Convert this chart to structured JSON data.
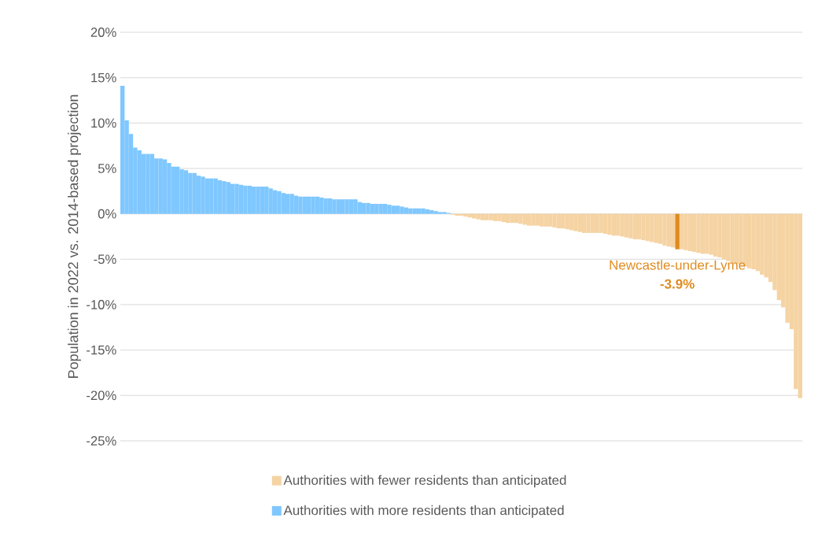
{
  "chart_data": {
    "type": "bar",
    "ylabel": "Population in 2022 vs. 2014-based projection",
    "categories": [
      null,
      null,
      null,
      null,
      null,
      null,
      null,
      null,
      null,
      null,
      null,
      null,
      null,
      null,
      null,
      null,
      null,
      null,
      null,
      null,
      null,
      null,
      null,
      null,
      null,
      null,
      null,
      null,
      null,
      null,
      null,
      null,
      null,
      null,
      null,
      null,
      null,
      null,
      null,
      null,
      null,
      null,
      null,
      null,
      null,
      null,
      null,
      null,
      null,
      null,
      null,
      null,
      null,
      null,
      null,
      null,
      null,
      null,
      null,
      null,
      null,
      null,
      null,
      null,
      null,
      null,
      null,
      null,
      null,
      null,
      null,
      null,
      null,
      null,
      null,
      null,
      null,
      null,
      null,
      null,
      null,
      null,
      null,
      null,
      null,
      null,
      null,
      null,
      null,
      null,
      null,
      null,
      null,
      null,
      null,
      null,
      null,
      null,
      null,
      null,
      null,
      null,
      null,
      null,
      null,
      null,
      null,
      null,
      null,
      null,
      null,
      null,
      null,
      null,
      null,
      null,
      null,
      null,
      null,
      null,
      null,
      null,
      null,
      null,
      null,
      null,
      null,
      null,
      null,
      null,
      null,
      null,
      null,
      null,
      null,
      null,
      null,
      null,
      null,
      null,
      null,
      null,
      null,
      null,
      null,
      null,
      null,
      null,
      null,
      null,
      null,
      null,
      null,
      null,
      null,
      null,
      null,
      null,
      null,
      null,
      null
    ],
    "series": [
      {
        "name": "Authorities with fewer residents than anticipated",
        "color": "#f5d3a3",
        "values": [
          null,
          null,
          null,
          null,
          null,
          null,
          null,
          null,
          null,
          null,
          null,
          null,
          null,
          null,
          null,
          null,
          null,
          null,
          null,
          null,
          null,
          null,
          null,
          null,
          null,
          null,
          null,
          null,
          null,
          null,
          null,
          null,
          null,
          null,
          null,
          null,
          null,
          null,
          null,
          null,
          null,
          null,
          null,
          null,
          null,
          null,
          null,
          null,
          null,
          null,
          null,
          null,
          null,
          null,
          null,
          null,
          null,
          null,
          null,
          null,
          null,
          null,
          null,
          null,
          null,
          null,
          null,
          null,
          null,
          null,
          null,
          null,
          null,
          null,
          null,
          null,
          null,
          null,
          -0.1,
          -0.2,
          -0.2,
          -0.3,
          -0.4,
          -0.5,
          -0.6,
          -0.7,
          -0.7,
          -0.7,
          -0.8,
          -0.8,
          -0.9,
          -1.0,
          -1.0,
          -1.0,
          -1.1,
          -1.2,
          -1.3,
          -1.3,
          -1.3,
          -1.4,
          -1.4,
          -1.4,
          -1.5,
          -1.6,
          -1.6,
          -1.7,
          -1.8,
          -1.9,
          -2.0,
          -2.1,
          -2.1,
          -2.1,
          -2.1,
          -2.1,
          -2.2,
          -2.3,
          -2.4,
          -2.4,
          -2.5,
          -2.6,
          -2.7,
          -2.8,
          -2.8,
          -2.9,
          -3.0,
          -3.1,
          -3.2,
          -3.3,
          -3.5,
          -3.6,
          -3.7,
          null,
          -3.9,
          -4.0,
          -4.1,
          -4.2,
          -4.3,
          -4.4,
          -4.4,
          -4.5,
          -4.7,
          -4.8,
          -5.0,
          -5.2,
          -5.4,
          -5.5,
          -5.6,
          -5.8,
          -6.0,
          -6.1,
          -6.3,
          -6.7,
          -7.0,
          -7.5,
          -8.4,
          -9.5,
          -10.3,
          -12.0,
          -12.7,
          -19.3,
          -20.3
        ]
      },
      {
        "name": "Authorities with more residents than anticipated",
        "color": "#7fc7ff",
        "values": [
          14.1,
          10.3,
          8.8,
          7.3,
          7.0,
          6.6,
          6.6,
          6.6,
          6.1,
          6.1,
          6.0,
          5.6,
          5.2,
          5.2,
          4.9,
          4.8,
          4.5,
          4.5,
          4.2,
          4.1,
          3.9,
          3.9,
          3.9,
          3.7,
          3.6,
          3.5,
          3.3,
          3.3,
          3.2,
          3.1,
          3.1,
          3.0,
          3.0,
          3.0,
          3.0,
          2.8,
          2.6,
          2.5,
          2.3,
          2.2,
          2.2,
          2.0,
          1.9,
          1.9,
          1.9,
          1.9,
          1.9,
          1.8,
          1.7,
          1.7,
          1.6,
          1.6,
          1.6,
          1.6,
          1.6,
          1.6,
          1.3,
          1.2,
          1.2,
          1.1,
          1.1,
          1.1,
          1.1,
          1.0,
          0.9,
          0.9,
          0.8,
          0.7,
          0.6,
          0.6,
          0.6,
          0.6,
          0.5,
          0.4,
          0.3,
          0.2,
          0.2,
          0.1,
          null,
          null,
          null,
          null,
          null,
          null,
          null,
          null,
          null,
          null,
          null,
          null,
          null,
          null,
          null,
          null,
          null,
          null,
          null,
          null,
          null,
          null,
          null,
          null,
          null,
          null,
          null,
          null,
          null,
          null,
          null,
          null,
          null,
          null,
          null,
          null,
          null,
          null,
          null,
          null,
          null,
          null,
          null,
          null,
          null,
          null,
          null,
          null,
          null,
          null,
          null,
          null,
          null,
          null,
          null,
          null,
          null,
          null,
          null,
          null,
          null,
          null,
          null,
          null,
          null,
          null,
          null,
          null,
          null,
          null,
          null,
          null,
          null,
          null,
          null,
          null,
          null,
          null,
          null,
          null,
          null,
          null,
          null
        ]
      },
      {
        "name": "Newcastle-under-Lyme",
        "color": "#e08a1e",
        "values": [
          null,
          null,
          null,
          null,
          null,
          null,
          null,
          null,
          null,
          null,
          null,
          null,
          null,
          null,
          null,
          null,
          null,
          null,
          null,
          null,
          null,
          null,
          null,
          null,
          null,
          null,
          null,
          null,
          null,
          null,
          null,
          null,
          null,
          null,
          null,
          null,
          null,
          null,
          null,
          null,
          null,
          null,
          null,
          null,
          null,
          null,
          null,
          null,
          null,
          null,
          null,
          null,
          null,
          null,
          null,
          null,
          null,
          null,
          null,
          null,
          null,
          null,
          null,
          null,
          null,
          null,
          null,
          null,
          null,
          null,
          null,
          null,
          null,
          null,
          null,
          null,
          null,
          null,
          null,
          null,
          null,
          null,
          null,
          null,
          null,
          null,
          null,
          null,
          null,
          null,
          null,
          null,
          null,
          null,
          null,
          null,
          null,
          null,
          null,
          null,
          null,
          null,
          null,
          null,
          null,
          null,
          null,
          null,
          null,
          null,
          null,
          null,
          null,
          null,
          null,
          null,
          null,
          null,
          null,
          null,
          null,
          null,
          null,
          null,
          null,
          null,
          null,
          null,
          null,
          null,
          null,
          -3.9,
          null,
          null,
          null,
          null,
          null,
          null,
          null,
          null,
          null,
          null,
          null,
          null,
          null,
          null,
          null,
          null,
          null,
          null,
          null,
          null,
          null,
          null,
          null,
          null,
          null,
          null,
          null,
          null,
          null
        ],
        "value_labels": [
          null,
          null,
          null,
          null,
          null,
          null,
          null,
          null,
          null,
          null,
          null,
          null,
          null,
          null,
          null,
          null,
          null,
          null,
          null,
          null,
          null,
          null,
          null,
          null,
          null,
          null,
          null,
          null,
          null,
          null,
          null,
          null,
          null,
          null,
          null,
          null,
          null,
          null,
          null,
          null,
          null,
          null,
          null,
          null,
          null,
          null,
          null,
          null,
          null,
          null,
          null,
          null,
          null,
          null,
          null,
          null,
          null,
          null,
          null,
          null,
          null,
          null,
          null,
          null,
          null,
          null,
          null,
          null,
          null,
          null,
          null,
          null,
          null,
          null,
          null,
          null,
          null,
          null,
          null,
          null,
          null,
          null,
          null,
          null,
          null,
          null,
          null,
          null,
          null,
          null,
          null,
          null,
          null,
          null,
          null,
          null,
          null,
          null,
          null,
          null,
          null,
          null,
          null,
          null,
          null,
          null,
          null,
          null,
          null,
          null,
          null,
          null,
          null,
          null,
          null,
          null,
          null,
          null,
          null,
          null,
          null,
          null,
          null,
          null,
          null,
          null,
          null,
          null,
          null,
          null,
          null,
          "-3.9%",
          null,
          null,
          null,
          null,
          null,
          null,
          null,
          null,
          null,
          null,
          null,
          null,
          null,
          null,
          null,
          null,
          null,
          null,
          null,
          null,
          null,
          null,
          null,
          null,
          null,
          null,
          null,
          null,
          null
        ]
      }
    ],
    "ylim": [
      -25,
      20
    ],
    "yticks": [
      {
        "value": -25,
        "label": "-25%"
      },
      {
        "value": -20,
        "label": "-20%"
      },
      {
        "value": -15,
        "label": "-15%"
      },
      {
        "value": -10,
        "label": "-10%"
      },
      {
        "value": -5,
        "label": "-5%"
      },
      {
        "value": 0,
        "label": "0%"
      },
      {
        "value": 5,
        "label": "5%"
      },
      {
        "value": 10,
        "label": "10%"
      },
      {
        "value": 15,
        "label": "15%"
      },
      {
        "value": 20,
        "label": "20%"
      }
    ],
    "grid": "y",
    "legend": "bottom"
  }
}
